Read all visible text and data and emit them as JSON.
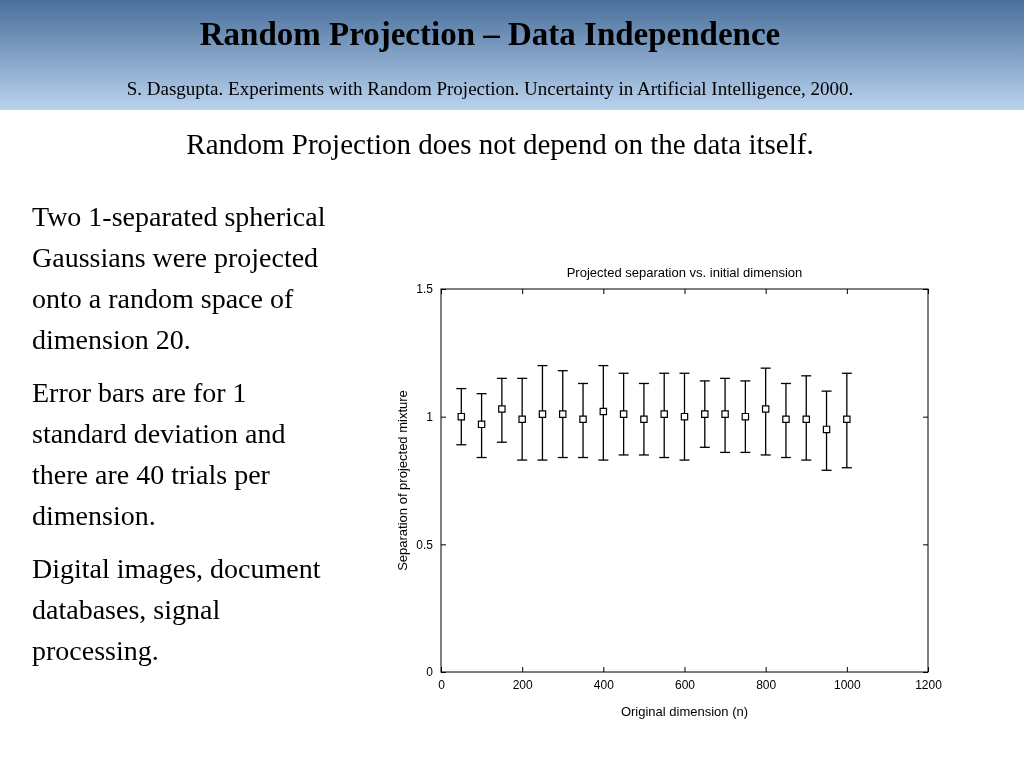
{
  "chart_data": {
    "type": "scatter",
    "title": "Random Projection – Data Independence",
    "subtitle": "S. Dasgupta. Experiments with Random Projection. Uncertainty in Artificial Intelligence, 2000.",
    "annotations": [
      "Projected separation vs. initial dimension",
      "Random Projection does not depend on the data itself.",
      "Two 1-separated spherical Gaussians were projected onto a random space of dimension 20.",
      "Error bars are for 1 standard deviation and there are 40 trials per dimension.",
      "Digital images, document databases, signal processing."
    ],
    "xlabel": "Original dimension (n)",
    "ylabel": "Separation of projected mixture",
    "x": [
      50,
      100,
      150,
      200,
      250,
      300,
      350,
      400,
      450,
      500,
      550,
      600,
      650,
      700,
      750,
      800,
      850,
      900,
      950,
      1000
    ],
    "series": [
      {
        "color": "#000000",
        "values": [
          1.0,
          0.97,
          1.03,
          0.99,
          1.01,
          1.01,
          0.99,
          1.02,
          1.01,
          0.99,
          1.01,
          1.0,
          1.01,
          1.01,
          1.0,
          1.03,
          0.99,
          0.99,
          0.95,
          0.99
        ],
        "errors": [
          [
            0.89,
            1.11
          ],
          [
            0.84,
            1.09
          ],
          [
            0.9,
            1.15
          ],
          [
            0.83,
            1.15
          ],
          [
            0.83,
            1.2
          ],
          [
            0.84,
            1.18
          ],
          [
            0.84,
            1.13
          ],
          [
            0.83,
            1.2
          ],
          [
            0.85,
            1.17
          ],
          [
            0.85,
            1.13
          ],
          [
            0.84,
            1.17
          ],
          [
            0.83,
            1.17
          ],
          [
            0.88,
            1.14
          ],
          [
            0.86,
            1.15
          ],
          [
            0.86,
            1.14
          ],
          [
            0.85,
            1.19
          ],
          [
            0.84,
            1.13
          ],
          [
            0.83,
            1.16
          ],
          [
            0.79,
            1.1
          ],
          [
            0.8,
            1.17
          ]
        ]
      }
    ],
    "xlim": [
      0,
      1200
    ],
    "xticks": [
      0,
      200,
      400,
      600,
      800,
      1000,
      1200
    ],
    "ylim": [
      0,
      1.5
    ],
    "yticks": [
      0,
      0.5,
      1,
      1.5
    ],
    "grid": false,
    "marker": "square"
  }
}
